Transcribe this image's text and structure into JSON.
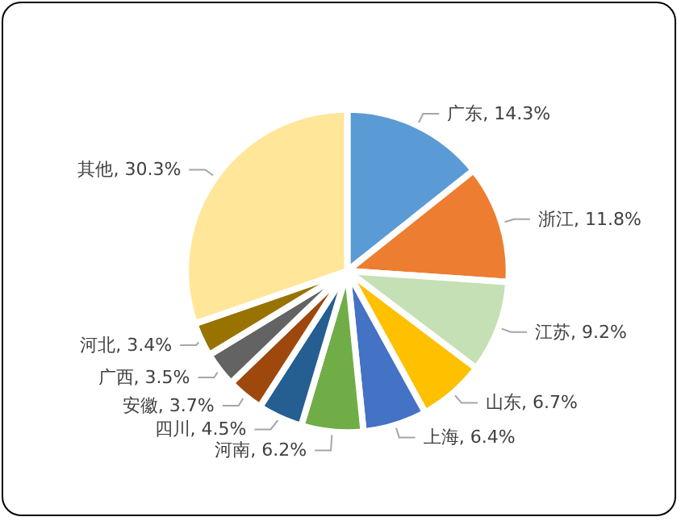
{
  "chart_data": {
    "type": "pie",
    "categories": [
      "广东",
      "浙江",
      "江苏",
      "山东",
      "上海",
      "河南",
      "四川",
      "安徽",
      "广西",
      "河北",
      "其他"
    ],
    "values": [
      14.3,
      11.8,
      9.2,
      6.7,
      6.4,
      6.2,
      4.5,
      3.7,
      3.5,
      3.4,
      30.3
    ],
    "value_labels": [
      "14.3%",
      "11.8%",
      "9.2%",
      "6.7%",
      "6.4%",
      "6.2%",
      "4.5%",
      "3.7%",
      "3.5%",
      "3.4%",
      "30.3%"
    ],
    "colors": [
      "#5b9bd5",
      "#ed7d31",
      "#c5e0b4",
      "#ffc000",
      "#4472c4",
      "#70ad47",
      "#255e91",
      "#9e480e",
      "#636363",
      "#997300",
      "#ffe699"
    ],
    "legend": false
  }
}
